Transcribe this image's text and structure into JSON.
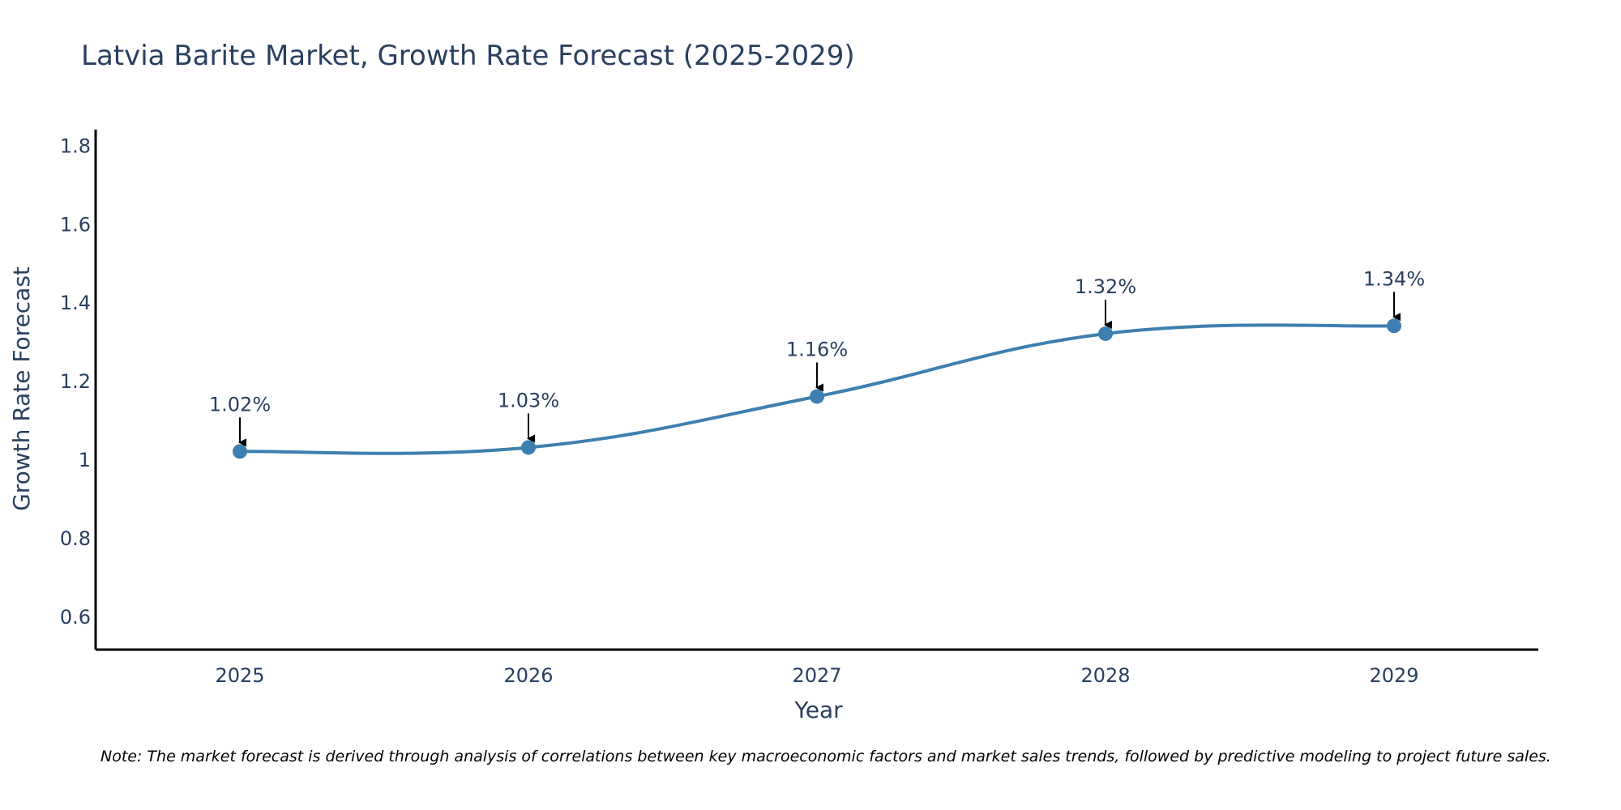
{
  "chart_data": {
    "type": "line",
    "title": "Latvia Barite Market, Growth Rate Forecast (2025-2029)",
    "xlabel": "Year",
    "ylabel": "Growth Rate Forecast",
    "categories": [
      "2025",
      "2026",
      "2027",
      "2028",
      "2029"
    ],
    "series": [
      {
        "name": "Growth Rate Forecast",
        "values": [
          1.02,
          1.03,
          1.16,
          1.32,
          1.34
        ],
        "color": "#3d7fb0"
      }
    ],
    "data_labels": [
      "1.02%",
      "1.03%",
      "1.16%",
      "1.32%",
      "1.34%"
    ],
    "ylim": [
      0.515,
      1.84
    ],
    "yticks": [
      0.6,
      0.8,
      1.0,
      1.2,
      1.4,
      1.6,
      1.8
    ],
    "ytick_labels": [
      "0.6",
      "0.8",
      "1",
      "1.2",
      "1.4",
      "1.6",
      "1.8"
    ],
    "grid": false,
    "line_shape": "spline"
  },
  "note": "Note: The market forecast is derived through analysis of correlations between key macroeconomic factors and market sales trends, followed by predictive modeling to project future sales.",
  "colors": {
    "text": "#2a3f5f",
    "axis": "#000000",
    "series": "#3d7fb0",
    "background": "#ffffff"
  }
}
